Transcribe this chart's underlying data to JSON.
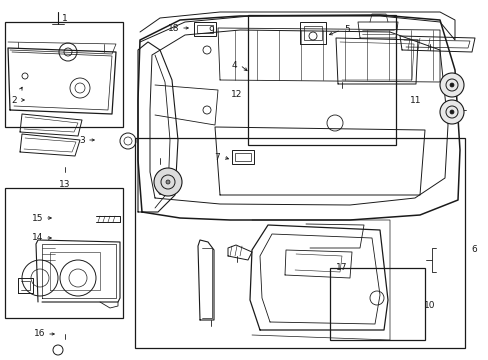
{
  "bg_color": "#ffffff",
  "line_color": "#1a1a1a",
  "fig_width": 4.89,
  "fig_height": 3.6,
  "dpi": 100,
  "fontsize_label": 7.0,
  "fontsize_num": 6.5
}
